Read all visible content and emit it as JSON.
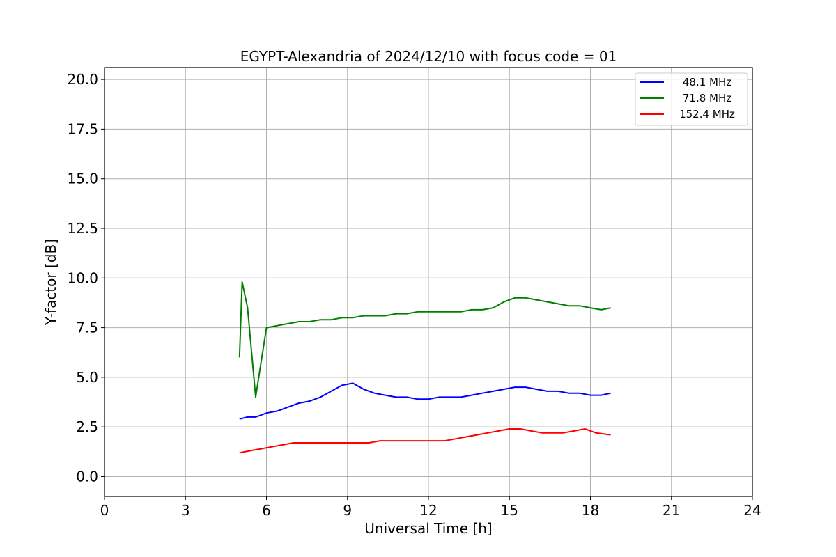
{
  "chart_data": {
    "type": "line",
    "title": "EGYPT-Alexandria of 2024/12/10 with focus code = 01",
    "xlabel": "Universal Time [h]",
    "ylabel": "Y-factor [dB]",
    "xlim": [
      0,
      24
    ],
    "ylim": [
      -1.0,
      20.6
    ],
    "xticks": [
      0,
      3,
      6,
      9,
      12,
      15,
      18,
      21,
      24
    ],
    "xtick_labels": [
      "0",
      "3",
      "6",
      "9",
      "12",
      "15",
      "18",
      "21",
      "24"
    ],
    "yticks": [
      0.0,
      2.5,
      5.0,
      7.5,
      10.0,
      12.5,
      15.0,
      17.5,
      20.0
    ],
    "ytick_labels": [
      "0.0",
      "2.5",
      "5.0",
      "7.5",
      "10.0",
      "12.5",
      "15.0",
      "17.5",
      "20.0"
    ],
    "grid": true,
    "legend_position": "top-right",
    "series": [
      {
        "name": "48.1 MHz",
        "color": "#0000ff",
        "x": [
          5.0,
          5.3,
          5.6,
          6.0,
          6.4,
          6.8,
          7.2,
          7.6,
          8.0,
          8.4,
          8.8,
          9.2,
          9.6,
          10.0,
          10.4,
          10.8,
          11.2,
          11.6,
          12.0,
          12.4,
          12.8,
          13.2,
          13.6,
          14.0,
          14.4,
          14.8,
          15.2,
          15.6,
          16.0,
          16.4,
          16.8,
          17.2,
          17.6,
          18.0,
          18.4,
          18.75
        ],
        "y": [
          2.9,
          3.0,
          3.0,
          3.2,
          3.3,
          3.5,
          3.7,
          3.8,
          4.0,
          4.3,
          4.6,
          4.7,
          4.4,
          4.2,
          4.1,
          4.0,
          4.0,
          3.9,
          3.9,
          4.0,
          4.0,
          4.0,
          4.1,
          4.2,
          4.3,
          4.4,
          4.5,
          4.5,
          4.4,
          4.3,
          4.3,
          4.2,
          4.2,
          4.1,
          4.1,
          4.2
        ]
      },
      {
        "name": "71.8 MHz",
        "color": "#008000",
        "x": [
          5.0,
          5.1,
          5.3,
          5.6,
          6.0,
          6.4,
          6.8,
          7.2,
          7.6,
          8.0,
          8.4,
          8.8,
          9.2,
          9.6,
          10.0,
          10.4,
          10.8,
          11.2,
          11.6,
          12.0,
          12.4,
          12.8,
          13.2,
          13.6,
          14.0,
          14.4,
          14.8,
          15.2,
          15.6,
          16.0,
          16.4,
          16.8,
          17.2,
          17.6,
          18.0,
          18.4,
          18.75
        ],
        "y": [
          6.0,
          9.8,
          8.5,
          4.0,
          7.5,
          7.6,
          7.7,
          7.8,
          7.8,
          7.9,
          7.9,
          8.0,
          8.0,
          8.1,
          8.1,
          8.1,
          8.2,
          8.2,
          8.3,
          8.3,
          8.3,
          8.3,
          8.3,
          8.4,
          8.4,
          8.5,
          8.8,
          9.0,
          9.0,
          8.9,
          8.8,
          8.7,
          8.6,
          8.6,
          8.5,
          8.4,
          8.5
        ]
      },
      {
        "name": "152.4 MHz",
        "color": "#ff0000",
        "x": [
          5.0,
          5.4,
          5.8,
          6.2,
          6.6,
          7.0,
          7.4,
          7.8,
          8.2,
          8.6,
          9.0,
          9.4,
          9.8,
          10.2,
          10.6,
          11.0,
          11.4,
          11.8,
          12.2,
          12.6,
          13.0,
          13.4,
          13.8,
          14.2,
          14.6,
          15.0,
          15.4,
          15.8,
          16.2,
          16.6,
          17.0,
          17.4,
          17.8,
          18.2,
          18.75
        ],
        "y": [
          1.2,
          1.3,
          1.4,
          1.5,
          1.6,
          1.7,
          1.7,
          1.7,
          1.7,
          1.7,
          1.7,
          1.7,
          1.7,
          1.8,
          1.8,
          1.8,
          1.8,
          1.8,
          1.8,
          1.8,
          1.9,
          2.0,
          2.1,
          2.2,
          2.3,
          2.4,
          2.4,
          2.3,
          2.2,
          2.2,
          2.2,
          2.3,
          2.4,
          2.2,
          2.1
        ]
      }
    ]
  }
}
